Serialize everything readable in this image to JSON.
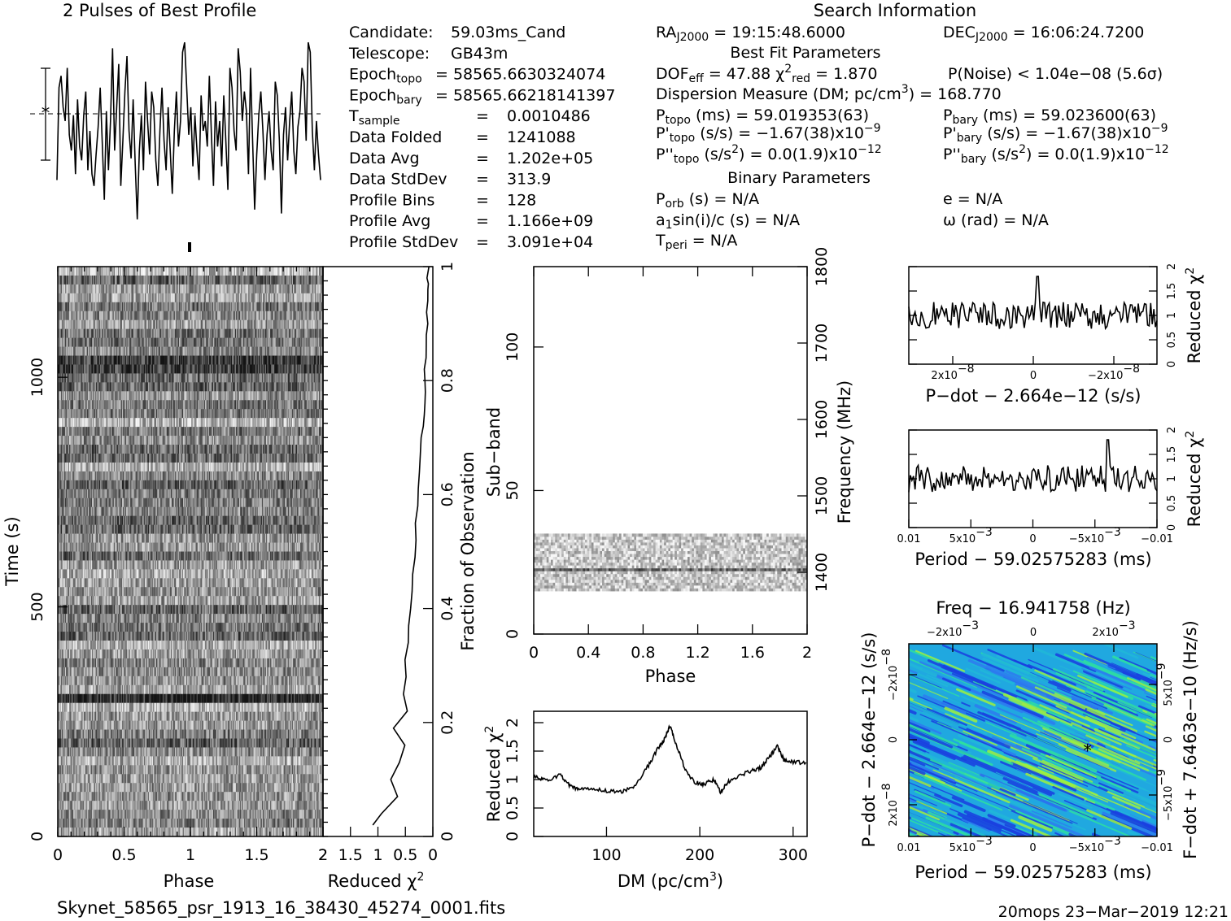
{
  "title_profile": "2 Pulses of Best Profile",
  "title_search": "Search Information",
  "info_left": [
    {
      "k": "Candidate:",
      "v": "59.03ms_Cand"
    },
    {
      "k": "Telescope:",
      "v": "GB43m"
    },
    {
      "k": "Epoch",
      "sub": "topo",
      "v": "= 58565.6630324074"
    },
    {
      "k": "Epoch",
      "sub": "bary",
      "v": "= 58565.66218141397"
    },
    {
      "k": "T",
      "sub": "sample",
      "eq": "=",
      "v": "0.0010486"
    },
    {
      "k": "Data Folded",
      "eq": "=",
      "v": "1241088"
    },
    {
      "k": "Data Avg",
      "eq": "=",
      "v": "1.202e+05"
    },
    {
      "k": "Data StdDev",
      "eq": "=",
      "v": "313.9"
    },
    {
      "k": "Profile Bins",
      "eq": "=",
      "v": "128"
    },
    {
      "k": "Profile Avg",
      "eq": "=",
      "v": "1.166e+09"
    },
    {
      "k": "Profile StdDev",
      "eq": "=",
      "v": "3.091e+04"
    }
  ],
  "ra": {
    "k": "RA",
    "sub": "J2000",
    "v": "= 19:15:48.6000"
  },
  "dec": {
    "k": "DEC",
    "sub": "J2000",
    "v": "= 16:06:24.7200"
  },
  "best_fit_header": "Best Fit Parameters",
  "dof": {
    "k": "DOF",
    "sub": "eff",
    "v": "= 47.88"
  },
  "chi": {
    "k": "χ",
    "sup": "2",
    "sub": "red",
    "v": "= 1.870"
  },
  "pnoise": "P(Noise) < 1.04e−08   (5.6σ)",
  "dm_line": {
    "a": "Dispersion Measure (DM; pc/cm",
    "sup": "3",
    "b": ") = 168.770"
  },
  "ptopo": {
    "k": "P",
    "sub": "topo",
    "u": "(ms) =",
    "v": "59.019353(63)"
  },
  "pbary": {
    "k": "P",
    "sub": "bary",
    "u": "(ms) =",
    "v": "59.023600(63)"
  },
  "pdtopo": {
    "k": "P'",
    "sub": "topo",
    "u": "(s/s) =",
    "v": "−1.67(38)x10",
    "sup": "−9"
  },
  "pdbary": {
    "k": "P'",
    "sub": "bary",
    "u": "(s/s) =",
    "v": "−1.67(38)x10",
    "sup": "−9"
  },
  "pddtopo": {
    "k": "P''",
    "sub": "topo",
    "u": "(s/s",
    "usup": "2",
    "u2": ") =",
    "v": "0.0(1.9)x10",
    "sup": "−12"
  },
  "pddbary": {
    "k": "P''",
    "sub": "bary",
    "u": "(s/s",
    "usup": "2",
    "u2": ") =",
    "v": "0.0(1.9)x10",
    "sup": "−12"
  },
  "binary_header": "Binary Parameters",
  "porb": {
    "k": "P",
    "sub": "orb",
    "v": "(s) = N/A"
  },
  "ecc": "e = N/A",
  "a1": {
    "k": "a",
    "sub": "1",
    "v": "sin(i)/c (s) = N/A"
  },
  "omega": "ω (rad) = N/A",
  "tperi": {
    "k": "T",
    "sub": "peri",
    "v": "= N/A"
  },
  "footer_file": "Skynet_58565_psr_1913_16_38430_45274_0001.fits",
  "footer_stamp": "20mops 23−Mar−2019 12:21",
  "chart_data": [
    {
      "type": "line",
      "name": "profile",
      "values": [
        0.25,
        0.72,
        0.78,
        0.62,
        0.55,
        0.82,
        0.48,
        0.4,
        0.58,
        0.28,
        0.66,
        0.42,
        0.35,
        0.58,
        0.7,
        0.3,
        0.5,
        0.28,
        0.22,
        0.38,
        0.52,
        0.72,
        0.44,
        0.15,
        0.6,
        0.3,
        0.55,
        0.92,
        0.4,
        0.62,
        0.84,
        0.22,
        0.45,
        0.7,
        0.88,
        0.5,
        0.36,
        0.66,
        0.33,
        0.05,
        0.4,
        0.58,
        0.3,
        0.75,
        0.55,
        0.38,
        0.7,
        0.62,
        0.35,
        0.22,
        0.5,
        0.72,
        0.45,
        0.3,
        0.62,
        0.4,
        0.18,
        0.5,
        0.7,
        0.42,
        0.55,
        0.9,
        0.95,
        0.72,
        0.48,
        0.62,
        0.32,
        0.58,
        0.4,
        0.25,
        0.68,
        0.5,
        0.55,
        0.42,
        0.78,
        0.48,
        0.22,
        0.65,
        0.42,
        0.55,
        0.32,
        0.68,
        0.45,
        0.2,
        0.82,
        0.72,
        0.5,
        0.4,
        0.92,
        0.8,
        0.55,
        0.7,
        0.6,
        0.28,
        0.82,
        0.45,
        0.1,
        0.38,
        0.58,
        0.7,
        0.5,
        0.25,
        0.48,
        0.6,
        0.4,
        0.3,
        0.75,
        0.68,
        0.45,
        0.08,
        0.48,
        0.62,
        0.35,
        0.55,
        0.7,
        0.4,
        0.28,
        0.52,
        0.6,
        0.82,
        0.75,
        0.45,
        0.95,
        0.9,
        0.5,
        0.3,
        0.55,
        0.38,
        0.25
      ]
    },
    {
      "type": "heatmap",
      "name": "time-phase",
      "xlabel": "Phase",
      "ylabel": "Time (s)",
      "xlim": [
        0,
        2
      ],
      "ylim": [
        0,
        1241
      ],
      "xticks": [
        "0",
        "0.5",
        "1",
        "1.5",
        "2"
      ],
      "yticks": [
        "0",
        "500",
        "1000"
      ],
      "right_label": "Fraction of Observation",
      "right_ticks": [
        "0",
        "0.2",
        "0.4",
        "0.6",
        "0.8",
        "1"
      ]
    },
    {
      "type": "line",
      "name": "time-chi2",
      "xlabel": "Reduced χ",
      "xlabel_sup": "2",
      "xticks": [
        "2",
        "1.5",
        "1",
        "0.5",
        "0"
      ],
      "x": [
        1.1,
        0.95,
        0.65,
        0.78,
        0.62,
        0.5,
        0.7,
        0.45,
        0.55,
        0.48,
        0.5,
        0.45,
        0.42,
        0.4,
        0.36,
        0.38,
        0.34,
        0.32,
        0.3,
        0.28,
        0.27,
        0.25,
        0.22,
        0.2,
        0.18,
        0.17,
        0.16,
        0.15,
        0.14,
        0.14,
        0.13,
        0.12,
        0.12,
        0.11,
        0.1,
        0.1,
        0.1,
        0.09,
        0.09,
        0.08
      ],
      "y": [
        0.02,
        0.04,
        0.07,
        0.1,
        0.13,
        0.16,
        0.19,
        0.22,
        0.25,
        0.28,
        0.31,
        0.34,
        0.37,
        0.4,
        0.43,
        0.46,
        0.49,
        0.52,
        0.55,
        0.58,
        0.61,
        0.64,
        0.67,
        0.7,
        0.72,
        0.74,
        0.76,
        0.78,
        0.8,
        0.82,
        0.84,
        0.86,
        0.88,
        0.9,
        0.92,
        0.94,
        0.96,
        0.97,
        0.98,
        1.0
      ]
    },
    {
      "type": "heatmap",
      "name": "subband-phase",
      "xlabel": "Phase",
      "ylabel": "Sub−band",
      "xlim": [
        0,
        2
      ],
      "ylim": [
        0,
        128
      ],
      "xticks": [
        "0",
        "0.4",
        "0.8",
        "1.2",
        "1.6",
        "2"
      ],
      "yticks": [
        "0",
        "50",
        "100"
      ],
      "right_label": "Frequency (MHz)",
      "right_ticks": [
        "1400",
        "1500",
        "1600",
        "1700",
        "1800"
      ],
      "band_rows": [
        15,
        35
      ]
    },
    {
      "type": "line",
      "name": "dm-chi2",
      "xlabel": "DM (pc/cm",
      "xlabel_sup": "3",
      "xlabel_end": ")",
      "ylabel": "Reduced χ",
      "ylabel_sup": "2",
      "xlim": [
        22,
        315
      ],
      "ylim": [
        0,
        2.2
      ],
      "xticks": [
        "100",
        "200",
        "300"
      ],
      "yticks": [
        "0",
        "0.5",
        "1",
        "1.5",
        "2"
      ],
      "x": [
        22,
        35,
        50,
        60,
        70,
        85,
        100,
        115,
        130,
        145,
        155,
        162,
        168,
        175,
        185,
        195,
        205,
        215,
        222,
        230,
        240,
        255,
        265,
        275,
        283,
        290,
        300,
        315
      ],
      "y": [
        1.05,
        0.98,
        1.08,
        0.9,
        0.82,
        0.85,
        0.8,
        0.78,
        0.88,
        1.25,
        1.55,
        1.7,
        1.95,
        1.6,
        1.15,
        0.95,
        0.92,
        1.0,
        0.78,
        0.95,
        1.05,
        1.15,
        1.2,
        1.4,
        1.6,
        1.35,
        1.3,
        1.3
      ]
    },
    {
      "type": "line",
      "name": "pdot-chi2",
      "xlabel": "P−dot − 2.664e−12 (s/s)",
      "ylabel": "Reduced χ",
      "ylabel_sup": "2",
      "ylim": [
        0,
        2
      ],
      "xticks": [
        "2x10",
        "0",
        "−2x10"
      ],
      "xtick_sup": "−8",
      "yticks": [
        "0",
        "0.5",
        "1",
        "1.5",
        "2"
      ],
      "peak_frac": 0.52
    },
    {
      "type": "line",
      "name": "period-chi2",
      "xlabel": "Period − 59.02575283 (ms)",
      "ylabel": "Reduced χ",
      "ylabel_sup": "2",
      "ylim": [
        0,
        2
      ],
      "xticks": [
        "0.01",
        "5x10",
        "0",
        "−5x10",
        "−0.01"
      ],
      "xtick_sup": "−3",
      "yticks": [
        "0",
        "0.5",
        "1",
        "1.5",
        "2"
      ],
      "peak_frac": 0.8
    },
    {
      "type": "heatmap",
      "name": "period-pdot",
      "title": "Freq − 16.941758 (Hz)",
      "xlabel": "Period − 59.02575283 (ms)",
      "ylabel": "P−dot − 2.664e−12 (s/s)",
      "right_label": "F−dot + 7.6463e−10 (Hz/s)",
      "xticks": [
        "0.01",
        "5x10",
        "0",
        "−5x10",
        "−0.01"
      ],
      "xtick_sup": "−3",
      "top_ticks": [
        "−2x10",
        "0",
        "2x10"
      ],
      "top_sup": "−3",
      "left_ticks": [
        "−2x10",
        "0",
        "2x10"
      ],
      "left_sup": "−8",
      "right_ticks": [
        "5x10",
        "0",
        "−5x10"
      ],
      "right_sup": "−9",
      "colors": [
        "#1a3fe0",
        "#2d7cf0",
        "#20b8d8",
        "#2ee0a0",
        "#9ef040"
      ],
      "best": [
        0.72,
        0.55
      ]
    }
  ]
}
